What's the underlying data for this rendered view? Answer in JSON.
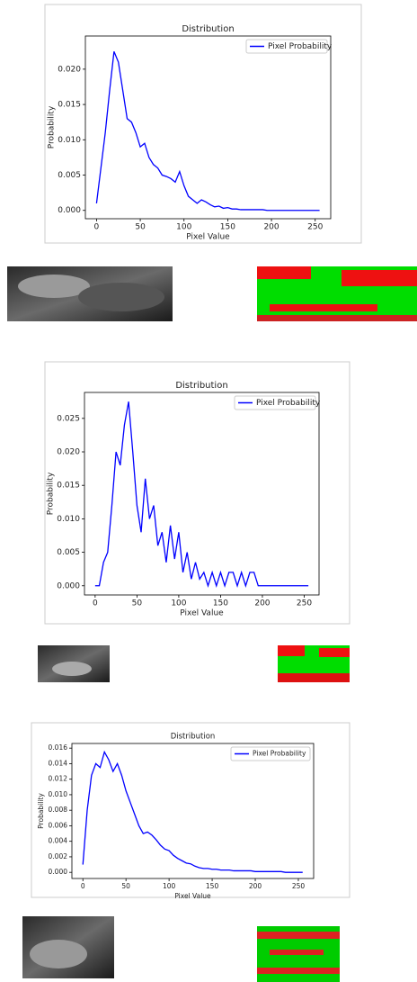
{
  "chart_data": [
    {
      "type": "line",
      "title": "Distribution",
      "x_label": "Pixel Value",
      "y_label": "Probability",
      "x": [
        0,
        5,
        10,
        15,
        20,
        25,
        30,
        35,
        40,
        45,
        50,
        55,
        60,
        65,
        70,
        75,
        80,
        85,
        90,
        95,
        100,
        105,
        110,
        115,
        120,
        125,
        130,
        135,
        140,
        145,
        150,
        155,
        160,
        165,
        170,
        175,
        180,
        185,
        190,
        195,
        200,
        205,
        210,
        215,
        220,
        225,
        230,
        235,
        240,
        245,
        250,
        255
      ],
      "series": [
        {
          "name": "Pixel Probability",
          "color": "#0000ff",
          "values": [
            0.001,
            0.006,
            0.011,
            0.017,
            0.0225,
            0.021,
            0.017,
            0.013,
            0.0125,
            0.011,
            0.009,
            0.0095,
            0.0075,
            0.0065,
            0.006,
            0.005,
            0.0048,
            0.0045,
            0.004,
            0.0055,
            0.0035,
            0.002,
            0.0015,
            0.001,
            0.0015,
            0.0012,
            0.0008,
            0.0005,
            0.0006,
            0.0003,
            0.0004,
            0.0002,
            0.0002,
            0.0001,
            0.0001,
            0.0001,
            0.0001,
            0.0001,
            0.0001,
            0,
            0,
            0,
            0,
            0,
            0,
            0,
            0,
            0,
            0,
            0,
            0,
            0
          ]
        }
      ],
      "xlim": [
        -12.75,
        267.75
      ],
      "xticks": [
        0,
        50,
        100,
        150,
        200,
        250
      ],
      "ylim": [
        -0.00118,
        0.0247
      ],
      "yticks": [
        {
          "value": 0,
          "label": "0.000"
        },
        {
          "value": 0.005,
          "label": "0.005"
        },
        {
          "value": 0.01,
          "label": "0.010"
        },
        {
          "value": 0.015,
          "label": "0.015"
        },
        {
          "value": 0.02,
          "label": "0.020"
        }
      ],
      "legend": "upper right"
    },
    {
      "type": "line",
      "title": "Distribution",
      "x_label": "Pixel Value",
      "y_label": "Probability",
      "x": [
        0,
        5,
        10,
        15,
        20,
        25,
        30,
        35,
        40,
        45,
        50,
        55,
        60,
        65,
        70,
        75,
        80,
        85,
        90,
        95,
        100,
        105,
        110,
        115,
        120,
        125,
        130,
        135,
        140,
        145,
        150,
        155,
        160,
        165,
        170,
        175,
        180,
        185,
        190,
        195,
        200,
        205,
        210,
        215,
        220,
        225,
        230,
        235,
        240,
        245,
        250,
        255
      ],
      "series": [
        {
          "name": "Pixel Probability",
          "color": "#0000ff",
          "values": [
            0,
            0,
            0.0035,
            0.005,
            0.012,
            0.02,
            0.018,
            0.024,
            0.0275,
            0.02,
            0.012,
            0.008,
            0.016,
            0.01,
            0.012,
            0.006,
            0.008,
            0.0035,
            0.009,
            0.004,
            0.008,
            0.002,
            0.005,
            0.001,
            0.0035,
            0.001,
            0.002,
            0,
            0.002,
            0,
            0.002,
            0,
            0.002,
            0.002,
            0,
            0.002,
            0,
            0.002,
            0.002,
            0,
            0,
            0,
            0,
            0,
            0,
            0,
            0,
            0,
            0,
            0,
            0,
            0
          ]
        }
      ],
      "xlim": [
        -12.75,
        267.75
      ],
      "xticks": [
        0,
        50,
        100,
        150,
        200,
        250
      ],
      "ylim": [
        -0.001375,
        0.028875
      ],
      "yticks": [
        {
          "value": 0,
          "label": "0.000"
        },
        {
          "value": 0.005,
          "label": "0.005"
        },
        {
          "value": 0.01,
          "label": "0.010"
        },
        {
          "value": 0.015,
          "label": "0.015"
        },
        {
          "value": 0.02,
          "label": "0.020"
        },
        {
          "value": 0.025,
          "label": "0.025"
        }
      ],
      "legend": "upper right"
    },
    {
      "type": "line",
      "title": "Distribution",
      "x_label": "Pixel Value",
      "y_label": "Probability",
      "x": [
        0,
        5,
        10,
        15,
        20,
        25,
        30,
        35,
        40,
        45,
        50,
        55,
        60,
        65,
        70,
        75,
        80,
        85,
        90,
        95,
        100,
        105,
        110,
        115,
        120,
        125,
        130,
        135,
        140,
        145,
        150,
        155,
        160,
        165,
        170,
        175,
        180,
        185,
        190,
        195,
        200,
        205,
        210,
        215,
        220,
        225,
        230,
        235,
        240,
        245,
        250,
        255
      ],
      "series": [
        {
          "name": "Pixel Probability",
          "color": "#0000ff",
          "values": [
            0.001,
            0.008,
            0.0125,
            0.014,
            0.0135,
            0.0155,
            0.0145,
            0.013,
            0.014,
            0.0125,
            0.0105,
            0.009,
            0.0075,
            0.006,
            0.005,
            0.0052,
            0.0048,
            0.0042,
            0.0035,
            0.003,
            0.0028,
            0.0022,
            0.0018,
            0.0015,
            0.0012,
            0.0011,
            0.0008,
            0.0006,
            0.0005,
            0.0005,
            0.0004,
            0.0004,
            0.0003,
            0.0003,
            0.0003,
            0.0002,
            0.0002,
            0.0002,
            0.0002,
            0.0002,
            0.0001,
            0.0001,
            0.0001,
            0.0001,
            0.0001,
            0.0001,
            0.0001,
            0,
            0,
            0,
            0,
            0
          ]
        }
      ],
      "xlim": [
        -12.75,
        267.75
      ],
      "xticks": [
        0,
        50,
        100,
        150,
        200,
        250
      ],
      "ylim": [
        -0.00079,
        0.0166
      ],
      "yticks": [
        {
          "value": 0,
          "label": "0.000"
        },
        {
          "value": 0.002,
          "label": "0.002"
        },
        {
          "value": 0.004,
          "label": "0.004"
        },
        {
          "value": 0.006,
          "label": "0.006"
        },
        {
          "value": 0.008,
          "label": "0.008"
        },
        {
          "value": 0.01,
          "label": "0.010"
        },
        {
          "value": 0.012,
          "label": "0.012"
        },
        {
          "value": 0.014,
          "label": "0.014"
        },
        {
          "value": 0.016,
          "label": "0.016"
        }
      ],
      "legend": "upper right"
    }
  ]
}
